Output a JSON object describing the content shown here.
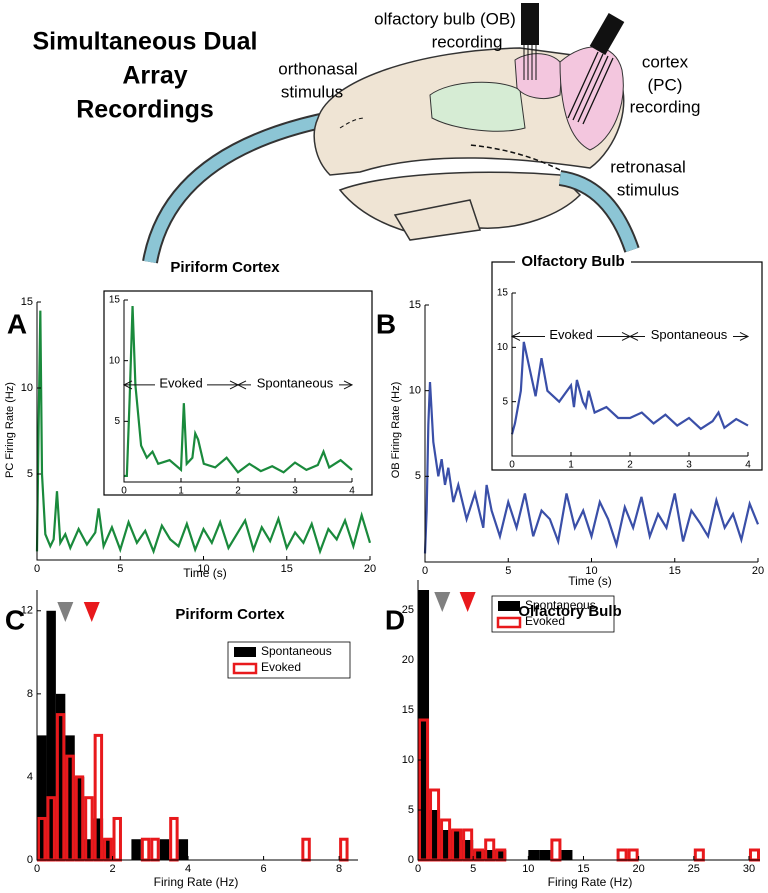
{
  "title": [
    "Simultaneous Dual",
    "Array",
    "Recordings"
  ],
  "diagram": {
    "ob_label": [
      "olfactory bulb (OB)",
      "recording"
    ],
    "pc_label": [
      "cortex",
      "(PC)",
      "recording"
    ],
    "ortho_label": [
      "orthonasal",
      "stimulus"
    ],
    "retro_label": [
      "retronasal",
      "stimulus"
    ]
  },
  "chart_data": [
    {
      "type": "line",
      "panel": "A",
      "title": "Piriform Cortex",
      "xlabel": "Time (s)",
      "ylabel": "PC Firing Rate (Hz)",
      "color": "#1a8a3c",
      "x": [
        0,
        0.1,
        0.2,
        0.3,
        0.5,
        0.8,
        1.0,
        1.2,
        1.4,
        1.7,
        2,
        2.5,
        3,
        3.5,
        3.7,
        4,
        4.5,
        5,
        5.5,
        6,
        6.5,
        7,
        7.5,
        8,
        8.5,
        9,
        9.5,
        10,
        10.5,
        11,
        11.5,
        12,
        12.5,
        13,
        13.5,
        14,
        14.5,
        15,
        15.5,
        16,
        16.5,
        17,
        17.5,
        18,
        18.5,
        19,
        19.5,
        20
      ],
      "values": [
        0.5,
        8,
        14.5,
        5,
        1.5,
        0.8,
        1.2,
        4,
        1,
        1.5,
        0.7,
        1.8,
        0.9,
        1.6,
        3,
        0.8,
        1.9,
        0.6,
        2.2,
        1,
        1.7,
        0.5,
        2,
        1.2,
        0.8,
        2.1,
        0.6,
        1.8,
        1,
        2.2,
        0.7,
        1.5,
        2.3,
        0.6,
        1.9,
        1.1,
        2.4,
        0.7,
        1.6,
        1,
        2.1,
        0.5,
        1.8,
        1.2,
        2.3,
        0.8,
        2.6,
        1
      ],
      "xlim": [
        0,
        20
      ],
      "ylim": [
        0,
        15
      ],
      "xticks": [
        0,
        5,
        10,
        15,
        20
      ],
      "yticks": [
        5,
        10,
        15
      ]
    },
    {
      "type": "line",
      "color": "#1a8a3c",
      "x": [
        0,
        0.05,
        0.1,
        0.15,
        0.2,
        0.3,
        0.4,
        0.5,
        0.6,
        0.8,
        1.0,
        1.05,
        1.1,
        1.2,
        1.25,
        1.3,
        1.4,
        1.6,
        1.8,
        2.0,
        2.2,
        2.4,
        2.6,
        2.8,
        3.0,
        3.2,
        3.4,
        3.5,
        3.6,
        3.8,
        4.0
      ],
      "values": [
        0.5,
        0.5,
        7,
        14.5,
        8,
        3,
        2,
        2.5,
        1.5,
        1.8,
        1,
        6.5,
        1.5,
        2,
        4,
        3.5,
        1.5,
        1.2,
        2,
        0.8,
        1.5,
        0.9,
        1.3,
        0.8,
        1.6,
        1,
        1.4,
        2.5,
        1.2,
        1.8,
        1
      ],
      "xlim": [
        0,
        4
      ],
      "ylim": [
        0,
        15
      ],
      "xticks": [
        0,
        1,
        2,
        3,
        4
      ],
      "yticks": [
        5,
        10,
        15
      ],
      "annotations": [
        "Evoked",
        "Spontaneous"
      ]
    },
    {
      "type": "line",
      "panel": "B",
      "xlabel": "Time (s)",
      "ylabel": "OB Firing Rate (Hz)",
      "color": "#3a4fa8",
      "x": [
        0,
        0.1,
        0.2,
        0.3,
        0.5,
        0.8,
        1.0,
        1.2,
        1.4,
        1.7,
        2,
        2.5,
        3,
        3.5,
        3.7,
        4,
        4.5,
        5,
        5.5,
        6,
        6.5,
        7,
        7.5,
        8,
        8.5,
        9,
        9.5,
        10,
        10.5,
        11,
        11.5,
        12,
        12.5,
        13,
        13.5,
        14,
        14.5,
        15,
        15.5,
        16,
        16.5,
        17,
        17.5,
        18,
        18.5,
        19,
        19.5,
        20
      ],
      "values": [
        0.5,
        3,
        8,
        10.5,
        7,
        5,
        6,
        4.5,
        5.5,
        3.5,
        4.5,
        2.5,
        4,
        2,
        4.5,
        3,
        1.5,
        3.5,
        2,
        4,
        1.5,
        3,
        2.5,
        1.2,
        4,
        2,
        3,
        1.5,
        3.5,
        2.5,
        1,
        3.2,
        2,
        3.8,
        1.5,
        2.8,
        2,
        4,
        1.2,
        3,
        2.3,
        1.5,
        3.6,
        2,
        2.8,
        1.3,
        3.4,
        2.2
      ],
      "xlim": [
        0,
        20
      ],
      "ylim": [
        0,
        15
      ],
      "xticks": [
        0,
        5,
        10,
        15,
        20
      ],
      "yticks": [
        5,
        10,
        15
      ]
    },
    {
      "type": "line",
      "title": "Olfactory Bulb",
      "color": "#3a4fa8",
      "x": [
        0,
        0.05,
        0.1,
        0.15,
        0.2,
        0.3,
        0.4,
        0.5,
        0.6,
        0.8,
        1.0,
        1.05,
        1.1,
        1.2,
        1.25,
        1.3,
        1.4,
        1.6,
        1.8,
        2.0,
        2.2,
        2.4,
        2.6,
        2.8,
        3.0,
        3.2,
        3.4,
        3.5,
        3.6,
        3.8,
        4.0
      ],
      "values": [
        2,
        3,
        4.5,
        6,
        10.5,
        8,
        5.5,
        9,
        6,
        5,
        6.5,
        4.5,
        7,
        5,
        4.5,
        6,
        4,
        4.5,
        3.5,
        3.5,
        4,
        3,
        3.8,
        2.8,
        3.5,
        2.5,
        3.2,
        4,
        2.6,
        3.4,
        2.8
      ],
      "xlim": [
        0,
        4
      ],
      "ylim": [
        0,
        15
      ],
      "xticks": [
        0,
        1,
        2,
        3,
        4
      ],
      "yticks": [
        5,
        10,
        15
      ],
      "annotations": [
        "Evoked",
        "Spontaneous"
      ]
    },
    {
      "type": "histogram",
      "panel": "C",
      "title": "Piriform Cortex",
      "xlabel": "Firing Rate (Hz)",
      "bins": [
        0,
        0.25,
        0.5,
        0.75,
        1,
        1.25,
        1.5,
        1.75,
        2,
        2.25,
        2.5,
        2.75,
        3,
        3.25,
        3.5,
        3.75,
        4,
        4.25,
        4.5,
        4.75,
        5,
        5.25,
        5.5,
        5.75,
        6,
        6.25,
        6.5,
        6.75,
        7,
        7.25,
        7.5,
        7.75,
        8,
        8.25,
        8.5
      ],
      "series": [
        {
          "name": "Spontaneous",
          "color": "#000000",
          "values": [
            6,
            12,
            8,
            6,
            4,
            1,
            2,
            1,
            0,
            0,
            1,
            0,
            0,
            1,
            0,
            1,
            0,
            0,
            0,
            0,
            0,
            0,
            0,
            0,
            0,
            0,
            0,
            0,
            0,
            0,
            0,
            0,
            0,
            0
          ]
        },
        {
          "name": "Evoked",
          "color": "#e8191c",
          "values": [
            2,
            3,
            7,
            5,
            4,
            3,
            6,
            1,
            2,
            0,
            0,
            1,
            1,
            0,
            2,
            0,
            0,
            0,
            0,
            0,
            0,
            0,
            0,
            0,
            0,
            0,
            0,
            0,
            1,
            0,
            0,
            0,
            1,
            0
          ]
        }
      ],
      "markers": [
        {
          "value": 0.75,
          "color": "#808080"
        },
        {
          "value": 1.45,
          "color": "#e8191c"
        }
      ],
      "xlim": [
        0,
        8.5
      ],
      "ylim": [
        0,
        13
      ],
      "xticks": [
        0,
        2,
        4,
        6,
        8
      ],
      "yticks": [
        0,
        4,
        8,
        12
      ]
    },
    {
      "type": "histogram",
      "panel": "D",
      "title": "Olfactory Bulb",
      "xlabel": "Firing Rate (Hz)",
      "bins": [
        0,
        1,
        2,
        3,
        4,
        5,
        6,
        7,
        8,
        9,
        10,
        11,
        12,
        13,
        14,
        15,
        16,
        17,
        18,
        19,
        20,
        21,
        22,
        23,
        24,
        25,
        26,
        27,
        28,
        29,
        30,
        31
      ],
      "series": [
        {
          "name": "Spontaneous",
          "color": "#000000",
          "values": [
            27,
            5,
            3,
            3,
            2,
            1,
            1,
            1,
            0,
            0,
            1,
            1,
            0,
            1,
            0,
            0,
            0,
            0,
            0,
            0,
            0,
            0,
            0,
            0,
            0,
            0,
            0,
            0,
            0,
            0,
            0
          ]
        },
        {
          "name": "Evoked",
          "color": "#e8191c",
          "values": [
            14,
            7,
            4,
            3,
            3,
            1,
            2,
            1,
            0,
            0,
            0,
            0,
            2,
            0,
            0,
            0,
            0,
            0,
            1,
            1,
            0,
            0,
            0,
            0,
            0,
            1,
            0,
            0,
            0,
            0,
            1
          ]
        }
      ],
      "markers": [
        {
          "value": 2.2,
          "color": "#808080"
        },
        {
          "value": 4.5,
          "color": "#e8191c"
        }
      ],
      "xlim": [
        0,
        31
      ],
      "ylim": [
        0,
        28
      ],
      "xticks": [
        0,
        5,
        10,
        15,
        20,
        25,
        30
      ],
      "yticks": [
        0,
        5,
        10,
        15,
        20,
        25
      ]
    }
  ]
}
